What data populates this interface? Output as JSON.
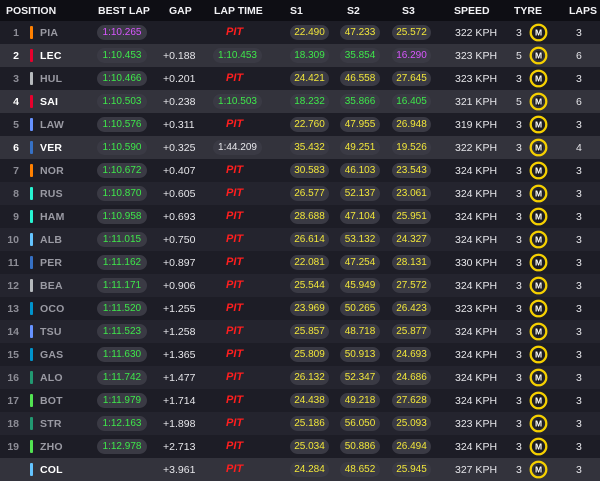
{
  "headers": {
    "position": "POSITION",
    "best_lap": "BEST LAP",
    "gap": "GAP",
    "lap_time": "LAP TIME",
    "s1": "S1",
    "s2": "S2",
    "s3": "S3",
    "speed": "SPEED",
    "tyre": "TYRE",
    "laps": "LAPS"
  },
  "tyre_letter": "M",
  "colors": {
    "purple": "#d957ff",
    "green": "#3ee84a",
    "yellow": "#f2e73a",
    "pit": "#ff1e1e",
    "tyre_medium": "#f5d000"
  },
  "rows": [
    {
      "pos": "1",
      "driver": "PIA",
      "team_color": "#ff8000",
      "best": "1:10.265",
      "best_c": "purple",
      "gap": "",
      "lap": "PIT",
      "lap_c": "pit",
      "s1": "22.490",
      "s1_c": "yellow",
      "s2": "47.233",
      "s2_c": "yellow",
      "s3": "25.572",
      "s3_c": "yellow",
      "speed": "322 KPH",
      "tyre_laps": "3",
      "laps": "3",
      "highlight": false
    },
    {
      "pos": "2",
      "driver": "LEC",
      "team_color": "#e8002d",
      "best": "1:10.453",
      "best_c": "green",
      "gap": "+0.188",
      "lap": "1:10.453",
      "lap_c": "green",
      "s1": "18.309",
      "s1_c": "green",
      "s2": "35.854",
      "s2_c": "green",
      "s3": "16.290",
      "s3_c": "purple",
      "speed": "323 KPH",
      "tyre_laps": "5",
      "laps": "6",
      "highlight": true
    },
    {
      "pos": "3",
      "driver": "HUL",
      "team_color": "#b6babd",
      "best": "1:10.466",
      "best_c": "green",
      "gap": "+0.201",
      "lap": "PIT",
      "lap_c": "pit",
      "s1": "24.421",
      "s1_c": "yellow",
      "s2": "46.558",
      "s2_c": "yellow",
      "s3": "27.645",
      "s3_c": "yellow",
      "speed": "323 KPH",
      "tyre_laps": "3",
      "laps": "3",
      "highlight": false
    },
    {
      "pos": "4",
      "driver": "SAI",
      "team_color": "#e8002d",
      "best": "1:10.503",
      "best_c": "green",
      "gap": "+0.238",
      "lap": "1:10.503",
      "lap_c": "green",
      "s1": "18.232",
      "s1_c": "green",
      "s2": "35.866",
      "s2_c": "green",
      "s3": "16.405",
      "s3_c": "green",
      "speed": "321 KPH",
      "tyre_laps": "5",
      "laps": "6",
      "highlight": true
    },
    {
      "pos": "5",
      "driver": "LAW",
      "team_color": "#6692ff",
      "best": "1:10.576",
      "best_c": "green",
      "gap": "+0.311",
      "lap": "PIT",
      "lap_c": "pit",
      "s1": "22.760",
      "s1_c": "yellow",
      "s2": "47.955",
      "s2_c": "yellow",
      "s3": "26.948",
      "s3_c": "yellow",
      "speed": "319 KPH",
      "tyre_laps": "3",
      "laps": "3",
      "highlight": false
    },
    {
      "pos": "6",
      "driver": "VER",
      "team_color": "#3671c6",
      "best": "1:10.590",
      "best_c": "green",
      "gap": "+0.325",
      "lap": "1:44.209",
      "lap_c": "white",
      "s1": "35.432",
      "s1_c": "yellow",
      "s2": "49.251",
      "s2_c": "yellow",
      "s3": "19.526",
      "s3_c": "yellow",
      "speed": "322 KPH",
      "tyre_laps": "3",
      "laps": "4",
      "highlight": true
    },
    {
      "pos": "7",
      "driver": "NOR",
      "team_color": "#ff8000",
      "best": "1:10.672",
      "best_c": "green",
      "gap": "+0.407",
      "lap": "PIT",
      "lap_c": "pit",
      "s1": "30.583",
      "s1_c": "yellow",
      "s2": "46.103",
      "s2_c": "yellow",
      "s3": "23.543",
      "s3_c": "yellow",
      "speed": "324 KPH",
      "tyre_laps": "3",
      "laps": "3",
      "highlight": false
    },
    {
      "pos": "8",
      "driver": "RUS",
      "team_color": "#27f4d2",
      "best": "1:10.870",
      "best_c": "green",
      "gap": "+0.605",
      "lap": "PIT",
      "lap_c": "pit",
      "s1": "26.577",
      "s1_c": "yellow",
      "s2": "52.137",
      "s2_c": "yellow",
      "s3": "23.061",
      "s3_c": "yellow",
      "speed": "324 KPH",
      "tyre_laps": "3",
      "laps": "3",
      "highlight": false
    },
    {
      "pos": "9",
      "driver": "HAM",
      "team_color": "#27f4d2",
      "best": "1:10.958",
      "best_c": "green",
      "gap": "+0.693",
      "lap": "PIT",
      "lap_c": "pit",
      "s1": "28.688",
      "s1_c": "yellow",
      "s2": "47.104",
      "s2_c": "yellow",
      "s3": "25.951",
      "s3_c": "yellow",
      "speed": "324 KPH",
      "tyre_laps": "3",
      "laps": "3",
      "highlight": false
    },
    {
      "pos": "10",
      "driver": "ALB",
      "team_color": "#64c4ff",
      "best": "1:11.015",
      "best_c": "green",
      "gap": "+0.750",
      "lap": "PIT",
      "lap_c": "pit",
      "s1": "26.614",
      "s1_c": "yellow",
      "s2": "53.132",
      "s2_c": "yellow",
      "s3": "24.327",
      "s3_c": "yellow",
      "speed": "324 KPH",
      "tyre_laps": "3",
      "laps": "3",
      "highlight": false
    },
    {
      "pos": "11",
      "driver": "PER",
      "team_color": "#3671c6",
      "best": "1:11.162",
      "best_c": "green",
      "gap": "+0.897",
      "lap": "PIT",
      "lap_c": "pit",
      "s1": "22.081",
      "s1_c": "yellow",
      "s2": "47.254",
      "s2_c": "yellow",
      "s3": "28.131",
      "s3_c": "yellow",
      "speed": "330 KPH",
      "tyre_laps": "3",
      "laps": "3",
      "highlight": false
    },
    {
      "pos": "12",
      "driver": "BEA",
      "team_color": "#b6babd",
      "best": "1:11.171",
      "best_c": "green",
      "gap": "+0.906",
      "lap": "PIT",
      "lap_c": "pit",
      "s1": "25.544",
      "s1_c": "yellow",
      "s2": "45.949",
      "s2_c": "yellow",
      "s3": "27.572",
      "s3_c": "yellow",
      "speed": "324 KPH",
      "tyre_laps": "3",
      "laps": "3",
      "highlight": false
    },
    {
      "pos": "13",
      "driver": "OCO",
      "team_color": "#0093cc",
      "best": "1:11.520",
      "best_c": "green",
      "gap": "+1.255",
      "lap": "PIT",
      "lap_c": "pit",
      "s1": "23.969",
      "s1_c": "yellow",
      "s2": "50.265",
      "s2_c": "yellow",
      "s3": "26.423",
      "s3_c": "yellow",
      "speed": "323 KPH",
      "tyre_laps": "3",
      "laps": "3",
      "highlight": false
    },
    {
      "pos": "14",
      "driver": "TSU",
      "team_color": "#6692ff",
      "best": "1:11.523",
      "best_c": "green",
      "gap": "+1.258",
      "lap": "PIT",
      "lap_c": "pit",
      "s1": "25.857",
      "s1_c": "yellow",
      "s2": "48.718",
      "s2_c": "yellow",
      "s3": "25.877",
      "s3_c": "yellow",
      "speed": "324 KPH",
      "tyre_laps": "3",
      "laps": "3",
      "highlight": false
    },
    {
      "pos": "15",
      "driver": "GAS",
      "team_color": "#0093cc",
      "best": "1:11.630",
      "best_c": "green",
      "gap": "+1.365",
      "lap": "PIT",
      "lap_c": "pit",
      "s1": "25.809",
      "s1_c": "yellow",
      "s2": "50.913",
      "s2_c": "yellow",
      "s3": "24.693",
      "s3_c": "yellow",
      "speed": "324 KPH",
      "tyre_laps": "3",
      "laps": "3",
      "highlight": false
    },
    {
      "pos": "16",
      "driver": "ALO",
      "team_color": "#229971",
      "best": "1:11.742",
      "best_c": "green",
      "gap": "+1.477",
      "lap": "PIT",
      "lap_c": "pit",
      "s1": "26.132",
      "s1_c": "yellow",
      "s2": "52.347",
      "s2_c": "yellow",
      "s3": "24.686",
      "s3_c": "yellow",
      "speed": "324 KPH",
      "tyre_laps": "3",
      "laps": "3",
      "highlight": false
    },
    {
      "pos": "17",
      "driver": "BOT",
      "team_color": "#52e252",
      "best": "1:11.979",
      "best_c": "green",
      "gap": "+1.714",
      "lap": "PIT",
      "lap_c": "pit",
      "s1": "24.438",
      "s1_c": "yellow",
      "s2": "49.218",
      "s2_c": "yellow",
      "s3": "27.628",
      "s3_c": "yellow",
      "speed": "324 KPH",
      "tyre_laps": "3",
      "laps": "3",
      "highlight": false
    },
    {
      "pos": "18",
      "driver": "STR",
      "team_color": "#229971",
      "best": "1:12.163",
      "best_c": "green",
      "gap": "+1.898",
      "lap": "PIT",
      "lap_c": "pit",
      "s1": "25.186",
      "s1_c": "yellow",
      "s2": "56.050",
      "s2_c": "yellow",
      "s3": "25.093",
      "s3_c": "yellow",
      "speed": "323 KPH",
      "tyre_laps": "3",
      "laps": "3",
      "highlight": false
    },
    {
      "pos": "19",
      "driver": "ZHO",
      "team_color": "#52e252",
      "best": "1:12.978",
      "best_c": "green",
      "gap": "+2.713",
      "lap": "PIT",
      "lap_c": "pit",
      "s1": "25.034",
      "s1_c": "yellow",
      "s2": "50.886",
      "s2_c": "yellow",
      "s3": "26.494",
      "s3_c": "yellow",
      "speed": "324 KPH",
      "tyre_laps": "3",
      "laps": "3",
      "highlight": false
    },
    {
      "pos": "",
      "driver": "COL",
      "team_color": "#64c4ff",
      "best": "",
      "best_c": "green",
      "gap": "+3.961",
      "lap": "PIT",
      "lap_c": "pit",
      "s1": "24.284",
      "s1_c": "yellow",
      "s2": "48.652",
      "s2_c": "yellow",
      "s3": "25.945",
      "s3_c": "yellow",
      "speed": "327 KPH",
      "tyre_laps": "3",
      "laps": "3",
      "highlight": true
    }
  ]
}
